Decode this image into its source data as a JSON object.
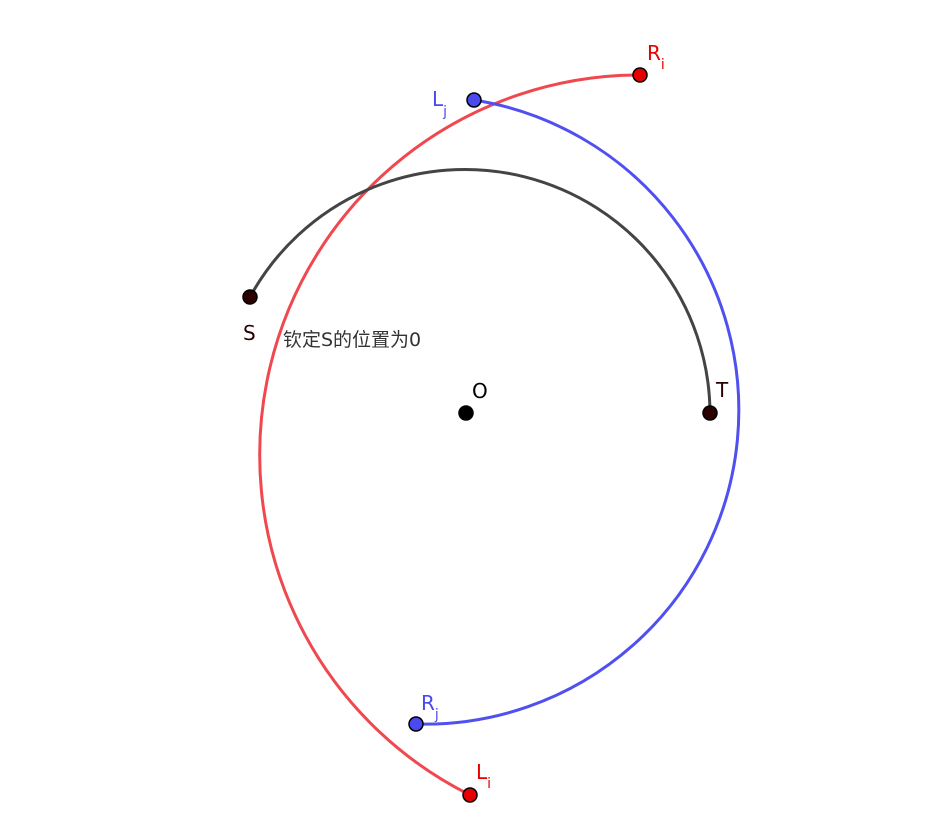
{
  "colors": {
    "red": "#f0484f",
    "red_point": "#e60000",
    "blue": "#5050f0",
    "blue_point": "#4a4aee",
    "gray": "#444444",
    "dark_point": "#2a0000",
    "black": "#000000",
    "text": "#333333"
  },
  "labels": {
    "ri_main": "R",
    "ri_sub": "i",
    "lj_main": "L",
    "lj_sub": "j",
    "rj_main": "R",
    "rj_sub": "j",
    "li_main": "L",
    "li_sub": "i",
    "s": "S",
    "t": "T",
    "o": "O",
    "note": "钦定S的位置为0"
  }
}
